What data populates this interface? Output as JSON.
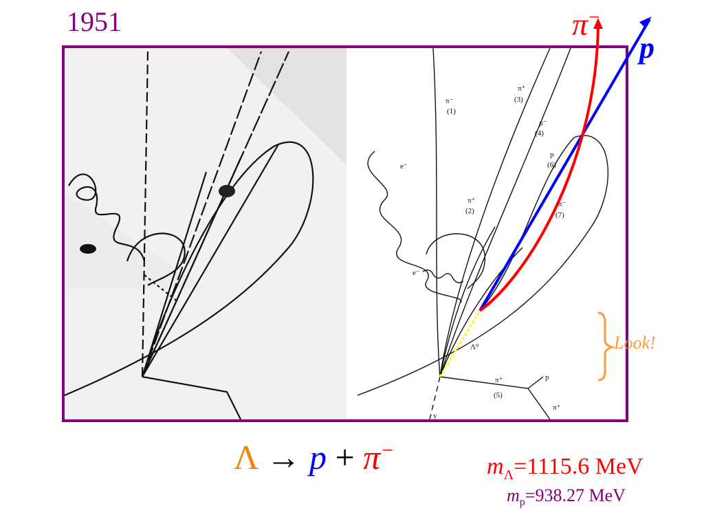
{
  "year": "1951",
  "label_pi_minus": {
    "base": "π",
    "sup": "−"
  },
  "label_proton": "p",
  "look": "Look!",
  "equation": {
    "lambda": "Λ",
    "arrow": "→",
    "proton": "p",
    "plus": "+",
    "pi": "π",
    "pi_sup": "−"
  },
  "mass_lambda": {
    "m": "m",
    "sub": "Λ",
    "value": "=1115.6 MeV"
  },
  "mass_proton": {
    "m": "m",
    "sub": "p",
    "value": "=938.27 MeV"
  },
  "track_labels": {
    "pi_minus_1": "π⁻",
    "n1": "(1)",
    "pi_plus_3": "π⁺",
    "n3": "(3)",
    "mu_minus_4": "μ⁻",
    "n4": "(4)",
    "p_6": "p",
    "n6": "(6)",
    "pi_plus_2": "π⁺",
    "n2": "(2)",
    "pi_minus_7": "π⁻",
    "n7": "(7)",
    "e_minus_spiral": "e⁻",
    "e_minus_wavy": "e⁻",
    "lambda0": "Λ⁰",
    "pi_plus_5": "π⁺",
    "n5": "(5)",
    "p_bottom": "p",
    "pi_plus_bottom": "π⁺",
    "y_bottom": "y"
  },
  "colors": {
    "frame": "#800080",
    "pi_track": "#ff0000",
    "proton_track": "#0000ff",
    "lambda_path": "#ffff00",
    "look": "#ff9a3c"
  }
}
